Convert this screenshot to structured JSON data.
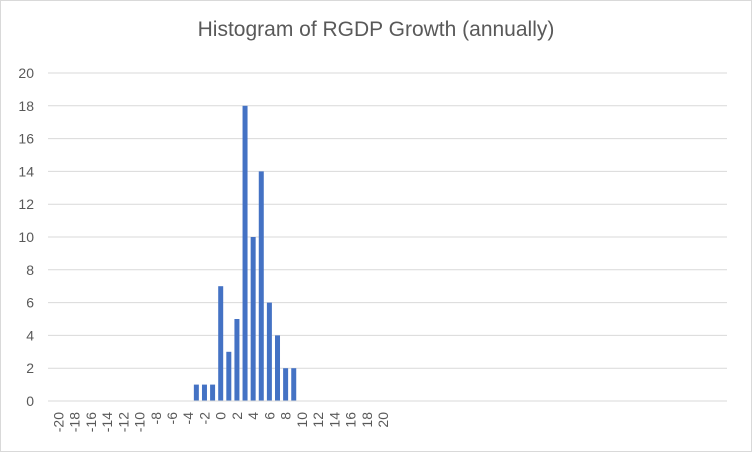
{
  "chart_data": {
    "type": "bar",
    "title": "Histogram of RGDP Growth (annually)",
    "xlabel": "",
    "ylabel": "",
    "categories": [
      -20,
      -19,
      -18,
      -17,
      -16,
      -15,
      -14,
      -13,
      -12,
      -11,
      -10,
      -9,
      -8,
      -7,
      -6,
      -5,
      -4,
      -3,
      -2,
      -1,
      0,
      1,
      2,
      3,
      4,
      5,
      6,
      7,
      8,
      9,
      10,
      11,
      12,
      13,
      14,
      15,
      16,
      17,
      18,
      19,
      20
    ],
    "values": [
      0,
      0,
      0,
      0,
      0,
      0,
      0,
      0,
      0,
      0,
      0,
      0,
      0,
      0,
      0,
      0,
      0,
      1,
      1,
      1,
      7,
      3,
      5,
      18,
      10,
      14,
      6,
      4,
      2,
      2,
      0,
      0,
      0,
      0,
      0,
      0,
      0,
      0,
      0,
      0,
      0
    ],
    "x_tick_labels": [
      "-20",
      "-18",
      "-16",
      "-14",
      "-12",
      "-10",
      "-8",
      "-6",
      "-4",
      "-2",
      "0",
      "2",
      "4",
      "6",
      "8",
      "10",
      "12",
      "14",
      "16",
      "18",
      "20"
    ],
    "y_tick_labels": [
      "0",
      "2",
      "4",
      "6",
      "8",
      "10",
      "12",
      "14",
      "16",
      "18",
      "20"
    ],
    "ylim": [
      0,
      20
    ],
    "grid": "horizontal",
    "legend": "none",
    "bar_color": "#4472c4"
  }
}
